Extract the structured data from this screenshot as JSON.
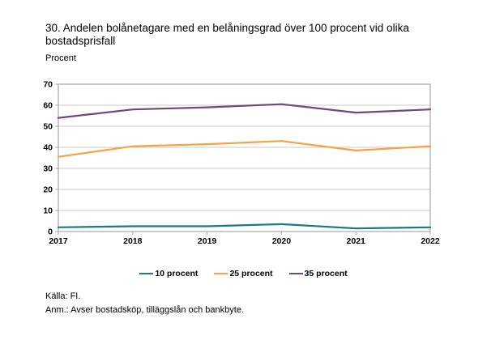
{
  "header": {
    "title": "30. Andelen bolånetagare med en belåningsgrad över 100 procent vid olika bostadsprisfall",
    "unit_label": "Procent"
  },
  "chart_data": {
    "type": "line",
    "title": "30. Andelen bolånetagare med en belåningsgrad över 100 procent vid olika bostadsprisfall",
    "ylabel": "Procent",
    "xlabel": "",
    "categories": [
      "2017",
      "2018",
      "2019",
      "2020",
      "2021",
      "2022"
    ],
    "series": [
      {
        "name": "10 procent",
        "color": "#1B7A84",
        "values": [
          2,
          2.5,
          2.5,
          3.5,
          1.5,
          2
        ]
      },
      {
        "name": "25 procent",
        "color": "#F8A145",
        "values": [
          35.5,
          40.5,
          41.5,
          43,
          38.5,
          40.5
        ]
      },
      {
        "name": "35 procent",
        "color": "#744778",
        "values": [
          54,
          58,
          59,
          60.5,
          56.5,
          58
        ]
      }
    ],
    "ylim": [
      0,
      70
    ],
    "ytick_step": 10,
    "grid": true,
    "legend_position": "bottom",
    "gridline_color": "#C9C9C9",
    "axis_border_color": "#A8A8A8"
  },
  "footer": {
    "source": "Källa: FI.",
    "note": "Anm.: Avser bostadsköp, tilläggslån och bankbyte."
  }
}
